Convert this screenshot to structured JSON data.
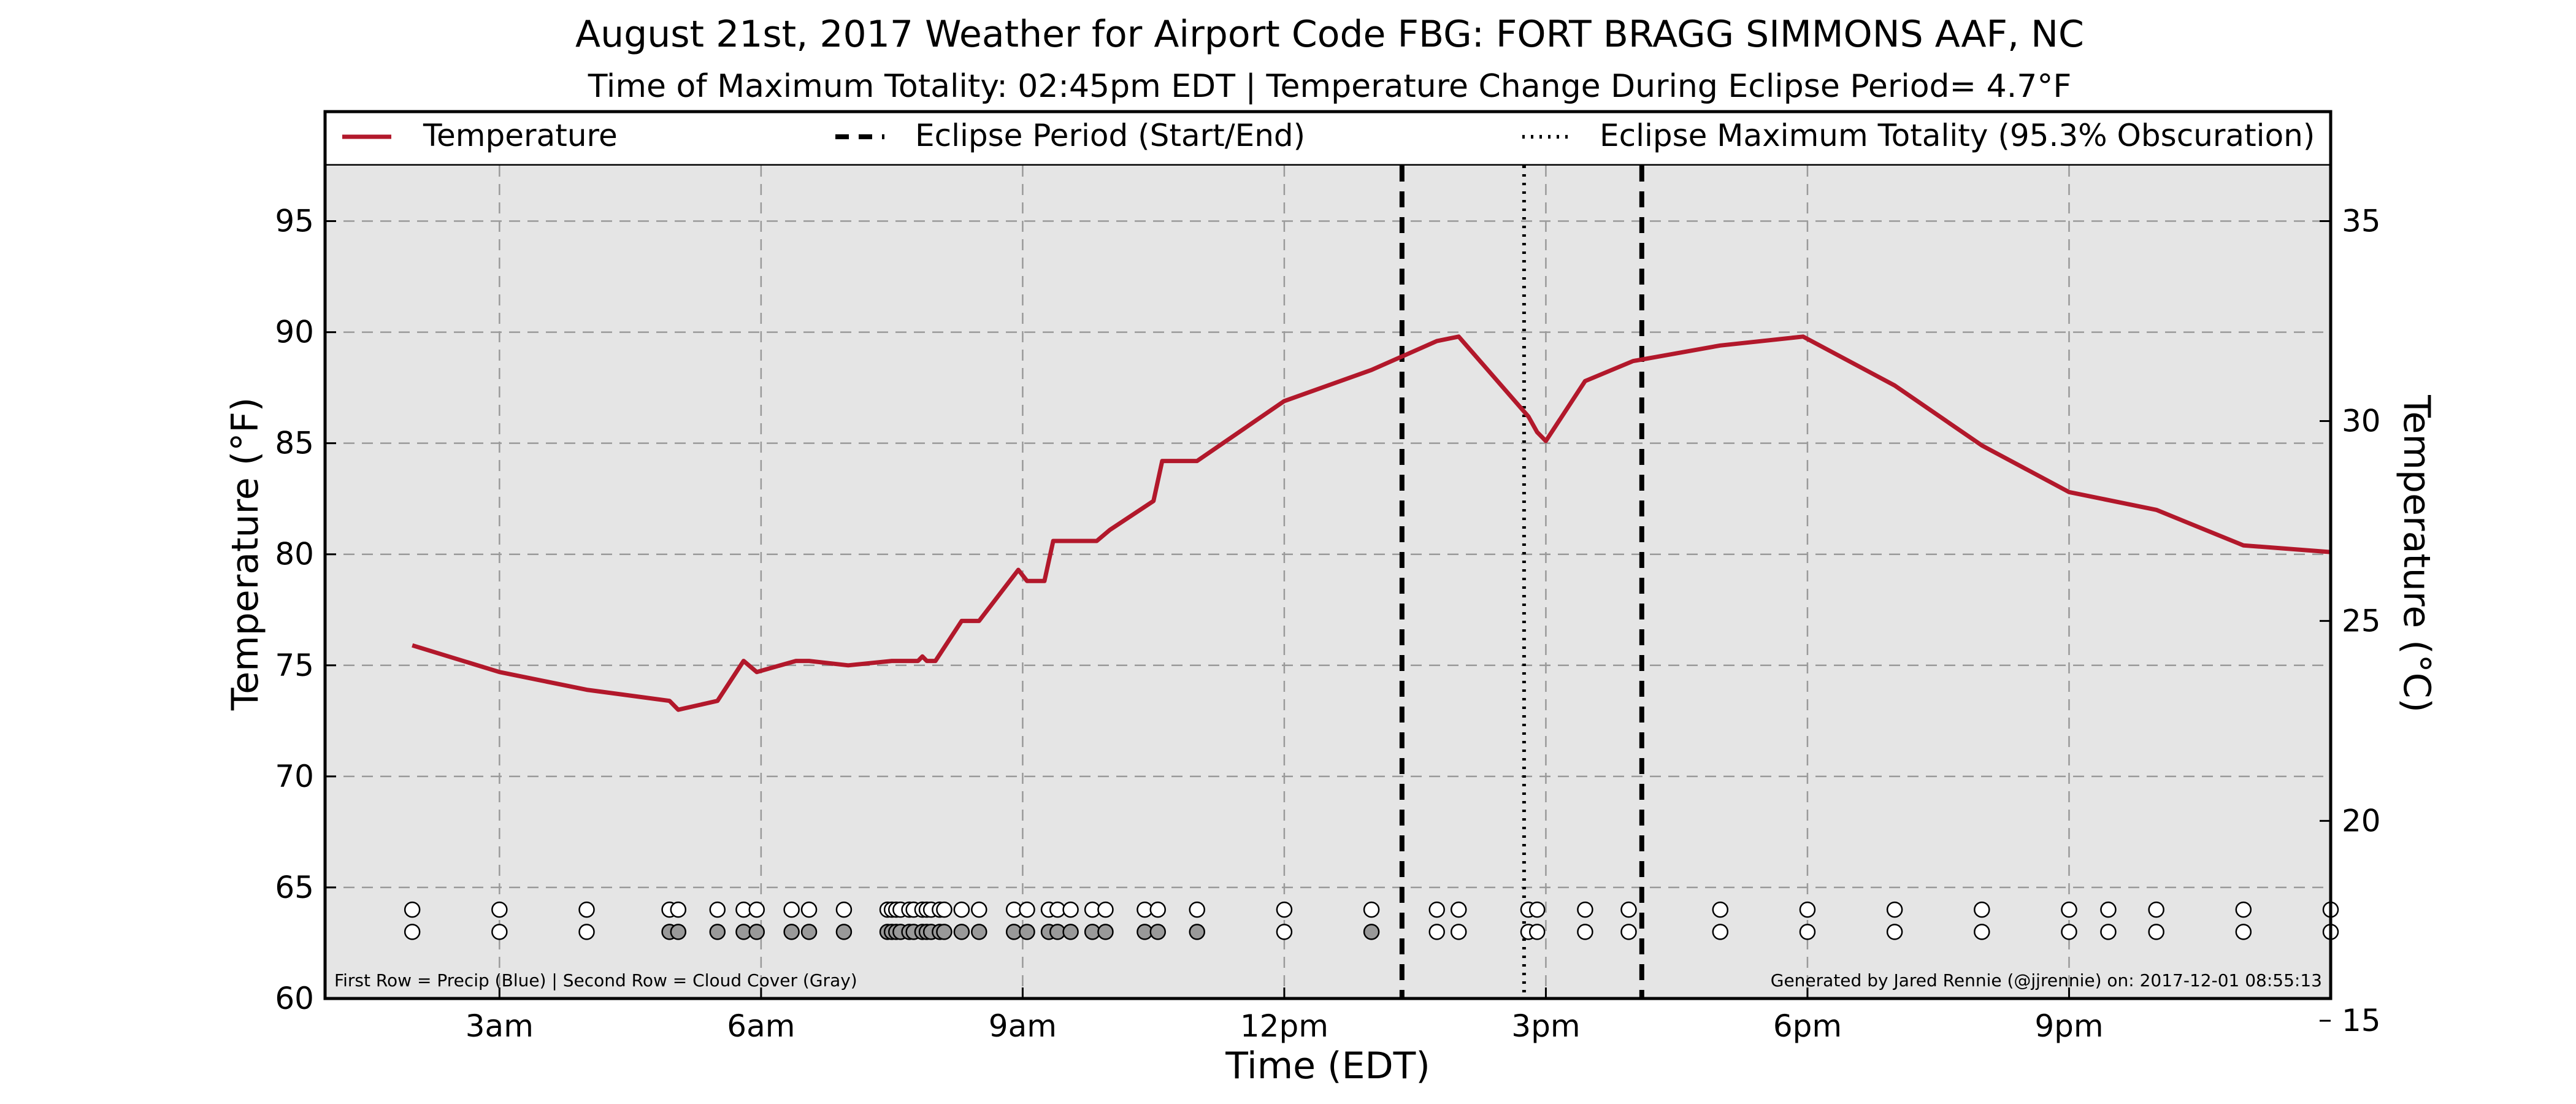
{
  "chart_data": {
    "type": "line",
    "title": "August 21st, 2017 Weather for Airport Code FBG: FORT BRAGG SIMMONS AAF, NC",
    "subtitle": "Time of Maximum Totality: 02:45pm EDT | Temperature Change During Eclipse Period= 4.7°F",
    "xlabel": "Time (EDT)",
    "ylabel": "Temperature (°F)",
    "ylabel_right": "Temperature (°C)",
    "x_unit": "hours since midnight EDT",
    "xlim": [
      1.0,
      24.0
    ],
    "ylim": [
      60,
      97.5
    ],
    "ylim_right": [
      15.556,
      36.389
    ],
    "x_ticks": [
      {
        "x": 3,
        "label": "3am"
      },
      {
        "x": 6,
        "label": "6am"
      },
      {
        "x": 9,
        "label": "9am"
      },
      {
        "x": 12,
        "label": "12pm"
      },
      {
        "x": 15,
        "label": "3pm"
      },
      {
        "x": 18,
        "label": "6pm"
      },
      {
        "x": 21,
        "label": "9pm"
      }
    ],
    "y_ticks": [
      60,
      65,
      70,
      75,
      80,
      85,
      90,
      95
    ],
    "y_ticks_right": [
      15,
      20,
      25,
      30,
      35
    ],
    "grid": true,
    "legend_placement": "top",
    "legend": [
      {
        "label": "Temperature",
        "style": "solid"
      },
      {
        "label": "Eclipse Period (Start/End)",
        "style": "dashed"
      },
      {
        "label": "Eclipse Maximum Totality (95.3% Obscuration)",
        "style": "dotted"
      }
    ],
    "series": [
      {
        "name": "Temperature",
        "color": "#b2182b",
        "points": [
          [
            2.0,
            75.9
          ],
          [
            3.0,
            74.7
          ],
          [
            4.0,
            73.9
          ],
          [
            4.95,
            73.4
          ],
          [
            5.05,
            73.0
          ],
          [
            5.5,
            73.4
          ],
          [
            5.8,
            75.2
          ],
          [
            5.95,
            74.7
          ],
          [
            6.4,
            75.2
          ],
          [
            6.55,
            75.2
          ],
          [
            7.0,
            75.0
          ],
          [
            7.5,
            75.2
          ],
          [
            7.8,
            75.2
          ],
          [
            7.85,
            75.4
          ],
          [
            7.9,
            75.2
          ],
          [
            8.0,
            75.2
          ],
          [
            8.3,
            77.0
          ],
          [
            8.5,
            77.0
          ],
          [
            8.95,
            79.3
          ],
          [
            9.05,
            78.8
          ],
          [
            9.25,
            78.8
          ],
          [
            9.35,
            80.6
          ],
          [
            9.85,
            80.6
          ],
          [
            10.0,
            81.1
          ],
          [
            10.5,
            82.4
          ],
          [
            10.6,
            84.2
          ],
          [
            11.0,
            84.2
          ],
          [
            12.0,
            86.9
          ],
          [
            13.0,
            88.3
          ],
          [
            13.75,
            89.6
          ],
          [
            14.0,
            89.8
          ],
          [
            14.8,
            86.2
          ],
          [
            14.9,
            85.5
          ],
          [
            15.0,
            85.1
          ],
          [
            15.45,
            87.8
          ],
          [
            16.0,
            88.7
          ],
          [
            17.0,
            89.4
          ],
          [
            17.95,
            89.8
          ],
          [
            19.0,
            87.6
          ],
          [
            20.0,
            84.9
          ],
          [
            21.0,
            82.8
          ],
          [
            22.0,
            82.0
          ],
          [
            23.0,
            80.4
          ],
          [
            24.0,
            80.1
          ]
        ]
      }
    ],
    "eclipse_start": 13.35,
    "eclipse_end": 16.1,
    "eclipse_max": 14.75,
    "precip_row_value": 64.0,
    "cloud_row_value": 63.0,
    "observations": [
      {
        "x": 2.0,
        "precip": "none",
        "cloud": "clear"
      },
      {
        "x": 3.0,
        "precip": "none",
        "cloud": "clear"
      },
      {
        "x": 4.0,
        "precip": "none",
        "cloud": "clear"
      },
      {
        "x": 4.95,
        "precip": "none",
        "cloud": "cloudy"
      },
      {
        "x": 5.05,
        "precip": "none",
        "cloud": "cloudy"
      },
      {
        "x": 5.5,
        "precip": "none",
        "cloud": "cloudy"
      },
      {
        "x": 5.8,
        "precip": "none",
        "cloud": "cloudy"
      },
      {
        "x": 5.95,
        "precip": "none",
        "cloud": "cloudy"
      },
      {
        "x": 6.35,
        "precip": "none",
        "cloud": "cloudy"
      },
      {
        "x": 6.55,
        "precip": "none",
        "cloud": "cloudy"
      },
      {
        "x": 6.95,
        "precip": "none",
        "cloud": "cloudy"
      },
      {
        "x": 7.45,
        "precip": "none",
        "cloud": "cloudy"
      },
      {
        "x": 7.5,
        "precip": "none",
        "cloud": "cloudy"
      },
      {
        "x": 7.55,
        "precip": "none",
        "cloud": "cloudy"
      },
      {
        "x": 7.6,
        "precip": "none",
        "cloud": "cloudy"
      },
      {
        "x": 7.7,
        "precip": "none",
        "cloud": "cloudy"
      },
      {
        "x": 7.75,
        "precip": "none",
        "cloud": "cloudy"
      },
      {
        "x": 7.85,
        "precip": "none",
        "cloud": "cloudy"
      },
      {
        "x": 7.9,
        "precip": "none",
        "cloud": "cloudy"
      },
      {
        "x": 7.95,
        "precip": "none",
        "cloud": "cloudy"
      },
      {
        "x": 8.05,
        "precip": "none",
        "cloud": "cloudy"
      },
      {
        "x": 8.1,
        "precip": "none",
        "cloud": "cloudy"
      },
      {
        "x": 8.3,
        "precip": "none",
        "cloud": "cloudy"
      },
      {
        "x": 8.5,
        "precip": "none",
        "cloud": "cloudy"
      },
      {
        "x": 8.9,
        "precip": "none",
        "cloud": "cloudy"
      },
      {
        "x": 9.05,
        "precip": "none",
        "cloud": "cloudy"
      },
      {
        "x": 9.3,
        "precip": "none",
        "cloud": "cloudy"
      },
      {
        "x": 9.4,
        "precip": "none",
        "cloud": "cloudy"
      },
      {
        "x": 9.55,
        "precip": "none",
        "cloud": "cloudy"
      },
      {
        "x": 9.8,
        "precip": "none",
        "cloud": "cloudy"
      },
      {
        "x": 9.95,
        "precip": "none",
        "cloud": "cloudy"
      },
      {
        "x": 10.4,
        "precip": "none",
        "cloud": "cloudy"
      },
      {
        "x": 10.55,
        "precip": "none",
        "cloud": "cloudy"
      },
      {
        "x": 11.0,
        "precip": "none",
        "cloud": "cloudy"
      },
      {
        "x": 12.0,
        "precip": "none",
        "cloud": "clear"
      },
      {
        "x": 13.0,
        "precip": "none",
        "cloud": "cloudy"
      },
      {
        "x": 13.75,
        "precip": "none",
        "cloud": "clear"
      },
      {
        "x": 14.0,
        "precip": "none",
        "cloud": "clear"
      },
      {
        "x": 14.8,
        "precip": "none",
        "cloud": "clear"
      },
      {
        "x": 14.9,
        "precip": "none",
        "cloud": "clear"
      },
      {
        "x": 15.45,
        "precip": "none",
        "cloud": "clear"
      },
      {
        "x": 15.95,
        "precip": "none",
        "cloud": "clear"
      },
      {
        "x": 17.0,
        "precip": "none",
        "cloud": "clear"
      },
      {
        "x": 18.0,
        "precip": "none",
        "cloud": "clear"
      },
      {
        "x": 19.0,
        "precip": "none",
        "cloud": "clear"
      },
      {
        "x": 20.0,
        "precip": "none",
        "cloud": "clear"
      },
      {
        "x": 21.0,
        "precip": "none",
        "cloud": "clear"
      },
      {
        "x": 21.45,
        "precip": "none",
        "cloud": "clear"
      },
      {
        "x": 22.0,
        "precip": "none",
        "cloud": "clear"
      },
      {
        "x": 23.0,
        "precip": "none",
        "cloud": "clear"
      },
      {
        "x": 24.0,
        "precip": "none",
        "cloud": "clear"
      }
    ],
    "footnote_left": "First Row = Precip (Blue) | Second Row = Cloud Cover (Gray)",
    "footnote_right": "Generated by Jared Rennie (@jjrennie) on: 2017-12-01 08:55:13"
  },
  "colors": {
    "temperature_line": "#b2182b",
    "plot_background": "#e5e5e5",
    "cloudy_fill": "#999999",
    "clear_fill": "#ffffff",
    "grid": "#9a9a9a"
  }
}
